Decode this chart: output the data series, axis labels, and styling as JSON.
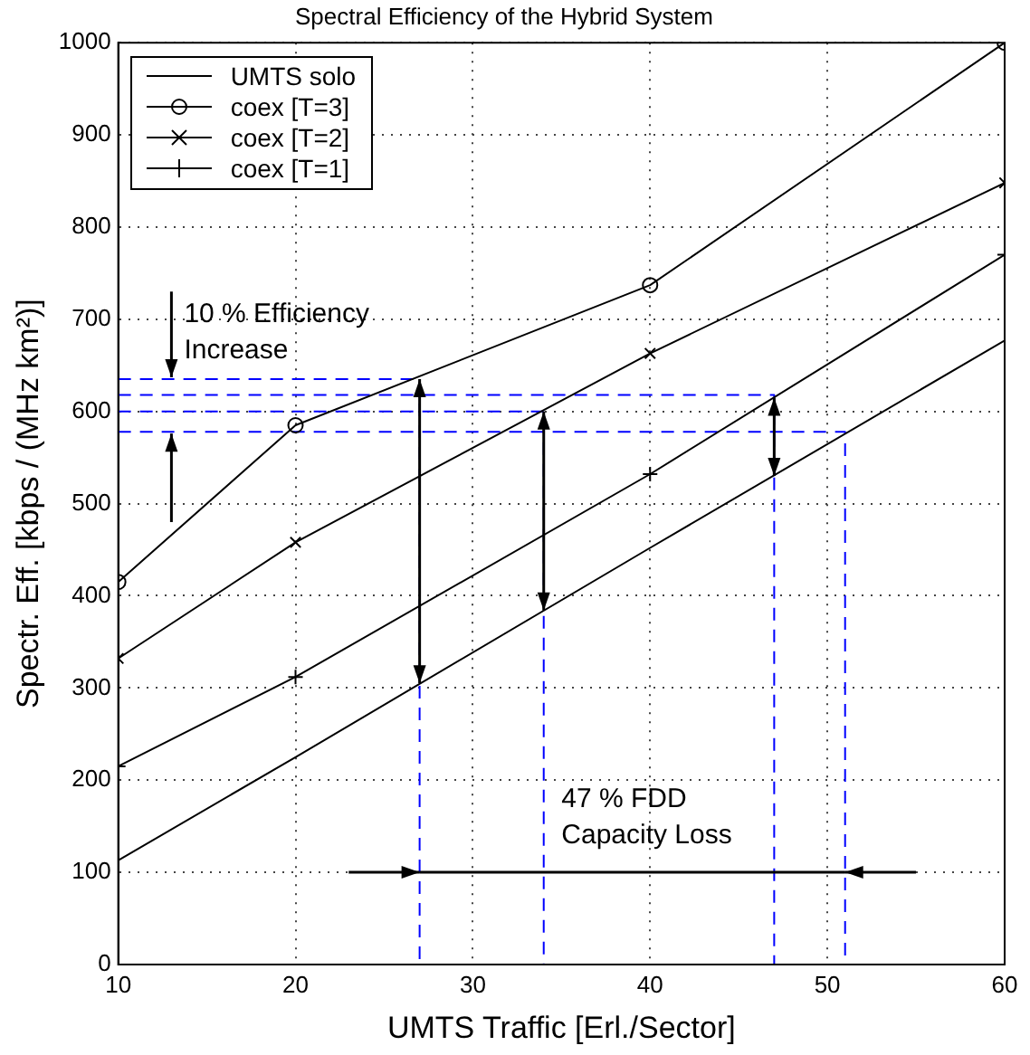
{
  "chart_data": {
    "type": "line",
    "title": "Spectral Efficiency of the Hybrid System",
    "xlabel": "UMTS Traffic [Erl./Sector]",
    "ylabel": "Spectr. Eff. [kbps / (MHz km²)]",
    "xlim": [
      10,
      60
    ],
    "ylim": [
      0,
      1000
    ],
    "xticks": [
      10,
      20,
      30,
      40,
      50,
      60
    ],
    "yticks": [
      0,
      100,
      200,
      300,
      400,
      500,
      600,
      700,
      800,
      900,
      1000
    ],
    "grid": true,
    "legend": "top left",
    "series": [
      {
        "name": "UMTS solo",
        "color": "#000000",
        "x": [
          10,
          20,
          40,
          60
        ],
        "values": [
          113,
          225,
          452,
          677
        ],
        "marker": "none"
      },
      {
        "name": "coex [T=3]",
        "color": "#000000",
        "x": [
          10,
          20,
          40,
          60
        ],
        "values": [
          415,
          585,
          737,
          1000
        ],
        "marker": "circle"
      },
      {
        "name": "coex [T=2]",
        "color": "#000000",
        "x": [
          10,
          20,
          40,
          60
        ],
        "values": [
          332,
          458,
          663,
          848
        ],
        "marker": "cross"
      },
      {
        "name": "coex [T=1]",
        "color": "#000000",
        "x": [
          10,
          20,
          40,
          60
        ],
        "values": [
          215,
          312,
          532,
          770
        ],
        "marker": "plus"
      },
      {
        "color": "#0000ff",
        "x": [
          10,
          27,
          27
        ],
        "values": [
          635,
          635,
          0
        ],
        "marker": "none",
        "line_style": "dashed"
      },
      {
        "color": "#0000ff",
        "x": [
          10,
          34,
          34
        ],
        "values": [
          600,
          600,
          0
        ],
        "marker": "none",
        "line_style": "dashed"
      },
      {
        "color": "#0000ff",
        "x": [
          10,
          47,
          47
        ],
        "values": [
          618,
          618,
          0
        ],
        "marker": "none",
        "line_style": "dashed"
      },
      {
        "color": "#0000ff",
        "x": [
          10,
          51,
          51
        ],
        "values": [
          578,
          578,
          0
        ],
        "marker": "none",
        "line_style": "dashed"
      }
    ],
    "annotations": [
      {
        "text": "10 % Efficiency Increase",
        "x": 13,
        "y": 635
      },
      "47 % FDD Capacity Loss"
    ]
  }
}
